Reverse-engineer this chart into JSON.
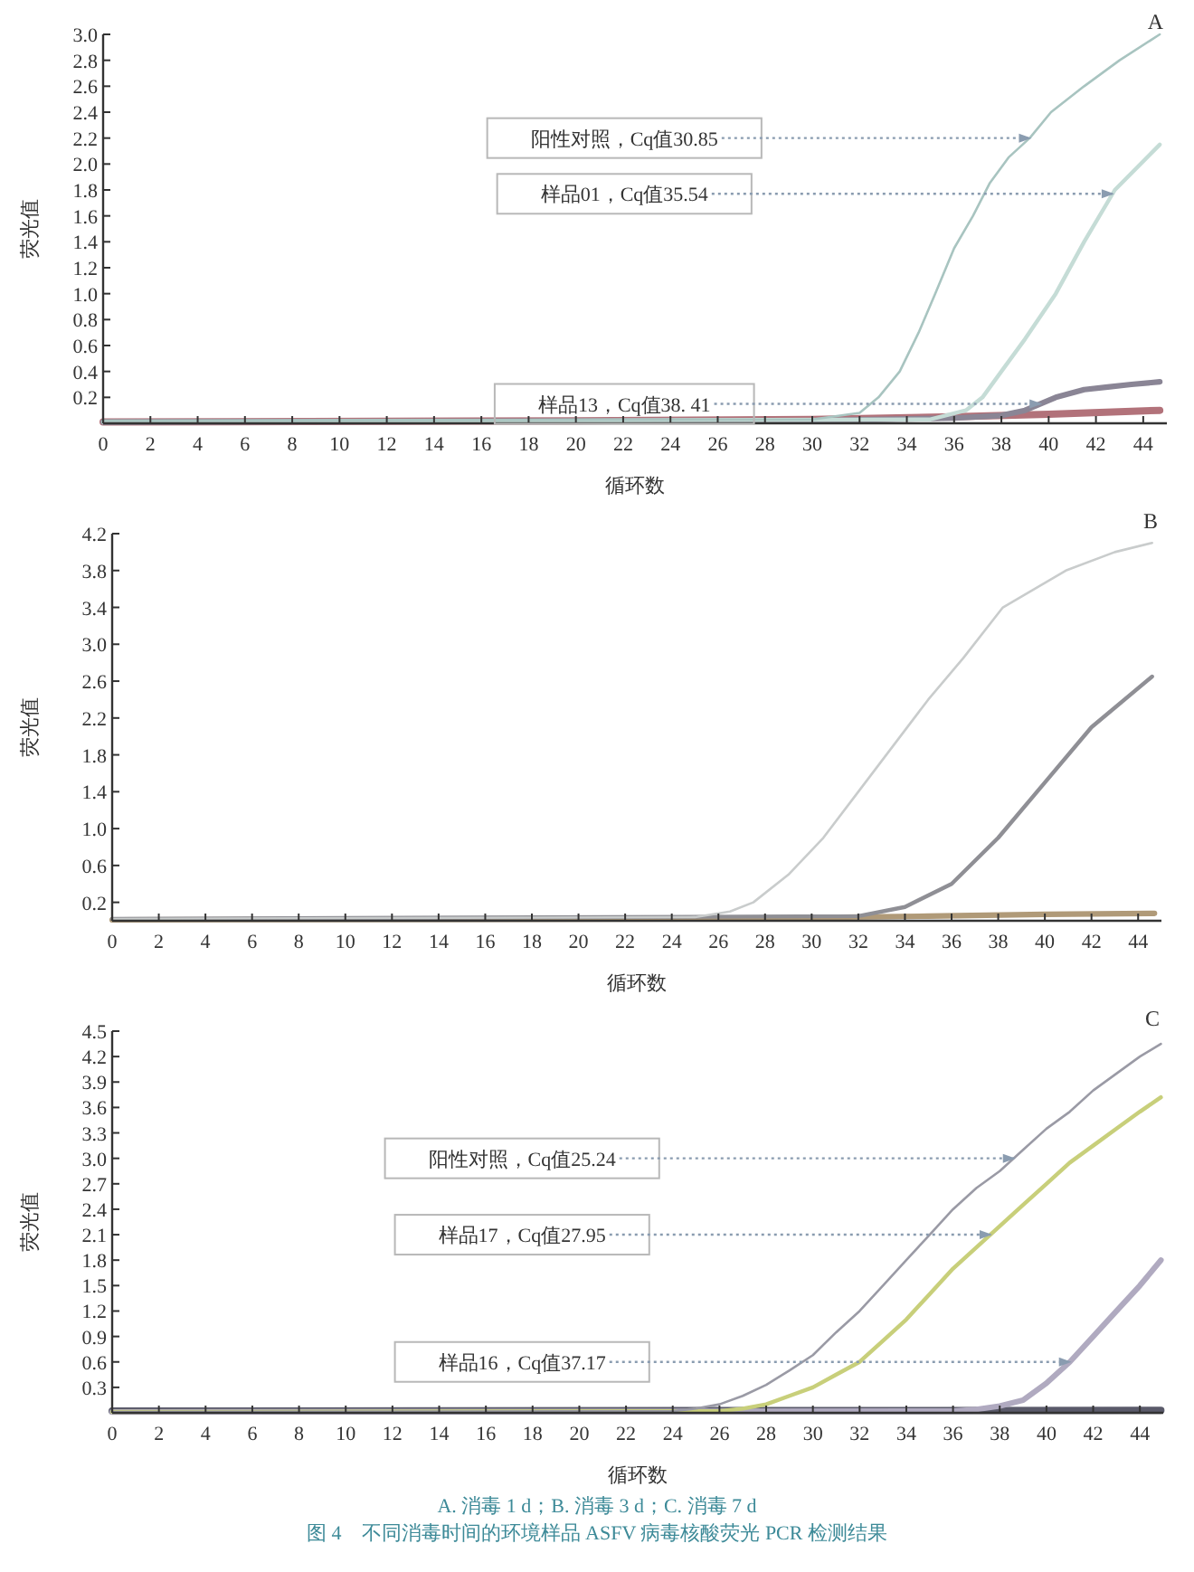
{
  "chart_data": [
    {
      "type": "line",
      "title": "A",
      "xlabel": "循环数",
      "ylabel": "荧光值",
      "xlim": [
        0,
        45
      ],
      "ylim": [
        0,
        3.0
      ],
      "xticks": [
        0,
        2,
        4,
        6,
        8,
        10,
        12,
        14,
        16,
        18,
        20,
        22,
        24,
        26,
        28,
        30,
        32,
        34,
        36,
        38,
        40,
        42,
        44
      ],
      "yticks": [
        0.2,
        0.4,
        0.6,
        0.8,
        {
          "value": 1,
          "label": "1.0"
        },
        1.2,
        1.4,
        1.6,
        1.8,
        {
          "value": 2,
          "label": "2.0"
        },
        2.2,
        2.4,
        2.6,
        2.8,
        {
          "value": 3,
          "label": "3.0"
        }
      ],
      "series": [
        {
          "color": "#b2727a",
          "x": [
            0,
            20,
            30,
            36,
            40,
            44.7
          ],
          "values": [
            0.01,
            0.02,
            0.03,
            0.05,
            0.07,
            0.1
          ]
        },
        {
          "color": "#8a8595",
          "x": [
            0,
            30,
            36,
            38,
            39,
            40.3,
            41.5,
            42.5,
            43.5,
            44.7
          ],
          "values": [
            0.01,
            0.02,
            0.04,
            0.06,
            0.1,
            0.2,
            0.26,
            0.28,
            0.3,
            0.32
          ]
        },
        {
          "color": "#c5dcd6",
          "x": [
            0,
            35,
            36.5,
            37.2,
            38,
            39,
            40.3,
            41.5,
            42.8,
            44.7
          ],
          "values": [
            0.01,
            0.03,
            0.1,
            0.2,
            0.4,
            0.65,
            1.0,
            1.4,
            1.8,
            2.15
          ]
        },
        {
          "color": "#a8c4c0",
          "x": [
            0,
            30,
            32,
            32.8,
            33.7,
            34.5,
            35.2,
            36,
            36.8,
            37.5,
            38.3,
            39.2,
            40.1,
            41.5,
            43,
            44.7
          ],
          "values": [
            0.02,
            0.03,
            0.08,
            0.2,
            0.4,
            0.7,
            1.0,
            1.35,
            1.6,
            1.85,
            2.05,
            2.2,
            2.4,
            2.6,
            2.8,
            3.0
          ]
        }
      ],
      "annotations": [
        {
          "text": "阳性对照，Cq值30.85",
          "x": 39.2,
          "y": 2.2
        },
        {
          "text": "样品01，Cq值35.54",
          "x": 42.7,
          "y": 1.77
        },
        {
          "text": "样品13，Cq值38. 41",
          "x": 39.65,
          "y": 0.15
        }
      ]
    },
    {
      "type": "line",
      "title": "B",
      "xlabel": "循环数",
      "ylabel": "荧光值",
      "xlim": [
        0,
        45
      ],
      "ylim": [
        0,
        4.2
      ],
      "xticks": [
        0,
        2,
        4,
        6,
        8,
        10,
        12,
        14,
        16,
        18,
        20,
        22,
        24,
        26,
        28,
        30,
        32,
        34,
        36,
        38,
        40,
        42,
        44
      ],
      "yticks": [
        0.2,
        0.6,
        {
          "value": 1,
          "label": "1.0"
        },
        1.4,
        1.8,
        2.2,
        2.6,
        {
          "value": 3,
          "label": "3.0"
        },
        3.4,
        3.8,
        4.2
      ],
      "series": [
        {
          "color": "#b09a78",
          "x": [
            0,
            25,
            35,
            40,
            44.7
          ],
          "values": [
            0.01,
            0.02,
            0.05,
            0.07,
            0.08
          ]
        },
        {
          "color": "#8f8f95",
          "x": [
            0,
            32,
            34,
            36,
            38,
            40,
            42,
            44.6
          ],
          "values": [
            0.02,
            0.05,
            0.15,
            0.4,
            0.9,
            1.5,
            2.1,
            2.65
          ]
        },
        {
          "color": "#c9cccc",
          "x": [
            0,
            25,
            26.5,
            27.5,
            29,
            30.5,
            32,
            33.5,
            35,
            36.5,
            38.2,
            40.9,
            43,
            44.6
          ],
          "values": [
            0.02,
            0.04,
            0.1,
            0.2,
            0.5,
            0.9,
            1.4,
            1.9,
            2.4,
            2.85,
            3.4,
            3.8,
            4.0,
            4.1
          ]
        }
      ]
    },
    {
      "type": "line",
      "title": "C",
      "xlabel": "循环数",
      "ylabel": "荧光值",
      "xlim": [
        0,
        45
      ],
      "ylim": [
        0,
        4.5
      ],
      "xticks": [
        0,
        2,
        4,
        6,
        8,
        10,
        12,
        14,
        16,
        18,
        20,
        22,
        24,
        26,
        28,
        30,
        32,
        34,
        36,
        38,
        40,
        42,
        44
      ],
      "yticks": [
        0.3,
        0.6,
        0.9,
        1.2,
        1.5,
        1.8,
        2.1,
        2.4,
        2.7,
        {
          "value": 3,
          "label": "3.0"
        },
        3.3,
        3.6,
        3.9,
        4.2,
        4.5
      ],
      "series": [
        {
          "color": "#5a5a6a",
          "x": [
            0,
            44.9
          ],
          "values": [
            0.02,
            0.03
          ]
        },
        {
          "color": "#b0aac0",
          "x": [
            0,
            36,
            37,
            38,
            39,
            40,
            41,
            42,
            43,
            44,
            44.9
          ],
          "values": [
            0.01,
            0.02,
            0.04,
            0.08,
            0.15,
            0.35,
            0.6,
            0.9,
            1.2,
            1.5,
            1.8
          ]
        },
        {
          "color": "#c8cf7a",
          "x": [
            0,
            26,
            27,
            28,
            29,
            30,
            31,
            32,
            33,
            34,
            35,
            36,
            37,
            38,
            39,
            40,
            41,
            42,
            43,
            44,
            44.9
          ],
          "values": [
            0.01,
            0.02,
            0.05,
            0.1,
            0.2,
            0.3,
            0.45,
            0.6,
            0.85,
            1.1,
            1.4,
            1.7,
            1.95,
            2.2,
            2.45,
            2.7,
            2.95,
            3.15,
            3.35,
            3.55,
            3.72
          ]
        },
        {
          "color": "#9a9aa5",
          "x": [
            0,
            24,
            25,
            26,
            27,
            28,
            29,
            30,
            31,
            32,
            33,
            34,
            35,
            36,
            37,
            38,
            39,
            40,
            41,
            42,
            43,
            44,
            44.9
          ],
          "values": [
            0.01,
            0.02,
            0.05,
            0.1,
            0.2,
            0.33,
            0.5,
            0.68,
            0.95,
            1.2,
            1.5,
            1.8,
            2.1,
            2.4,
            2.65,
            2.85,
            3.1,
            3.35,
            3.55,
            3.8,
            4.0,
            4.2,
            4.35
          ]
        }
      ],
      "annotations": [
        {
          "text": "阳性对照，Cq值25.24",
          "x": 38.6,
          "y": 3.0
        },
        {
          "text": "样品17，Cq值27.95",
          "x": 37.6,
          "y": 2.1
        },
        {
          "text": "样品16，Cq值37.17",
          "x": 41.0,
          "y": 0.6
        },
        "A. 消毒 1 d；B. 消毒 3 d；C. 消毒 7 d",
        "图 4　不同消毒时间的环境样品 ASFV 病毒核酸荧光 PCR 检测结果"
      ]
    }
  ]
}
